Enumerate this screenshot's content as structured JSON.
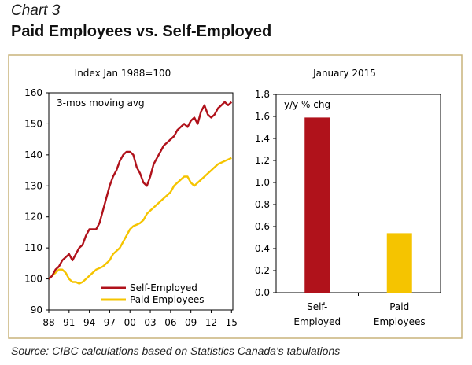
{
  "header": {
    "chart_number": "Chart 3",
    "title": "Paid Employees vs. Self-Employed"
  },
  "footer": {
    "source": "Source: CIBC calculations based on Statistics Canada's tabulations"
  },
  "colors": {
    "self_employed": "#b0121b",
    "paid_employees": "#f5c400",
    "frame_border": "#c9b37a"
  },
  "chart_data": [
    {
      "type": "line",
      "title": "Index Jan 1988=100",
      "annotation": "3-mos moving avg",
      "ylim": [
        90,
        160
      ],
      "xlim": [
        1988,
        2015.2
      ],
      "y_ticks": [
        90,
        100,
        110,
        120,
        130,
        140,
        150,
        160
      ],
      "x_ticks": [
        {
          "value": 1988,
          "label": "88"
        },
        {
          "value": 1991,
          "label": "91"
        },
        {
          "value": 1994,
          "label": "94"
        },
        {
          "value": 1997,
          "label": "97"
        },
        {
          "value": 2000,
          "label": "00"
        },
        {
          "value": 2003,
          "label": "03"
        },
        {
          "value": 2006,
          "label": "06"
        },
        {
          "value": 2009,
          "label": "09"
        },
        {
          "value": 2012,
          "label": "12"
        },
        {
          "value": 2015,
          "label": "15"
        }
      ],
      "legend_position": "bottom-left",
      "series": [
        {
          "name": "Self-Employed",
          "color": "#b0121b",
          "points": [
            [
              1988.0,
              100
            ],
            [
              1988.5,
              101
            ],
            [
              1989.0,
              103
            ],
            [
              1989.5,
              104
            ],
            [
              1990.0,
              106
            ],
            [
              1990.5,
              107
            ],
            [
              1991.0,
              108
            ],
            [
              1991.5,
              106
            ],
            [
              1992.0,
              108
            ],
            [
              1992.5,
              110
            ],
            [
              1993.0,
              111
            ],
            [
              1993.5,
              114
            ],
            [
              1994.0,
              116
            ],
            [
              1994.5,
              116
            ],
            [
              1995.0,
              116
            ],
            [
              1995.5,
              118
            ],
            [
              1996.0,
              122
            ],
            [
              1996.5,
              126
            ],
            [
              1997.0,
              130
            ],
            [
              1997.5,
              133
            ],
            [
              1998.0,
              135
            ],
            [
              1998.5,
              138
            ],
            [
              1999.0,
              140
            ],
            [
              1999.5,
              141
            ],
            [
              2000.0,
              141
            ],
            [
              2000.5,
              140
            ],
            [
              2001.0,
              136
            ],
            [
              2001.5,
              134
            ],
            [
              2002.0,
              131
            ],
            [
              2002.5,
              130
            ],
            [
              2003.0,
              133
            ],
            [
              2003.5,
              137
            ],
            [
              2004.0,
              139
            ],
            [
              2004.5,
              141
            ],
            [
              2005.0,
              143
            ],
            [
              2005.5,
              144
            ],
            [
              2006.0,
              145
            ],
            [
              2006.5,
              146
            ],
            [
              2007.0,
              148
            ],
            [
              2007.5,
              149
            ],
            [
              2008.0,
              150
            ],
            [
              2008.5,
              149
            ],
            [
              2009.0,
              151
            ],
            [
              2009.5,
              152
            ],
            [
              2010.0,
              150
            ],
            [
              2010.5,
              154
            ],
            [
              2011.0,
              156
            ],
            [
              2011.5,
              153
            ],
            [
              2012.0,
              152
            ],
            [
              2012.5,
              153
            ],
            [
              2013.0,
              155
            ],
            [
              2013.5,
              156
            ],
            [
              2014.0,
              157
            ],
            [
              2014.5,
              156
            ],
            [
              2015.0,
              157
            ]
          ]
        },
        {
          "name": "Paid Employees",
          "color": "#f5c400",
          "points": [
            [
              1988.0,
              100
            ],
            [
              1988.5,
              101
            ],
            [
              1989.0,
              102
            ],
            [
              1989.5,
              103
            ],
            [
              1990.0,
              103
            ],
            [
              1990.5,
              102
            ],
            [
              1991.0,
              100
            ],
            [
              1991.5,
              99
            ],
            [
              1992.0,
              99
            ],
            [
              1992.5,
              98.5
            ],
            [
              1993.0,
              99
            ],
            [
              1993.5,
              100
            ],
            [
              1994.0,
              101
            ],
            [
              1994.5,
              102
            ],
            [
              1995.0,
              103
            ],
            [
              1995.5,
              103.5
            ],
            [
              1996.0,
              104
            ],
            [
              1996.5,
              105
            ],
            [
              1997.0,
              106
            ],
            [
              1997.5,
              108
            ],
            [
              1998.0,
              109
            ],
            [
              1998.5,
              110
            ],
            [
              1999.0,
              112
            ],
            [
              1999.5,
              114
            ],
            [
              2000.0,
              116
            ],
            [
              2000.5,
              117
            ],
            [
              2001.0,
              117.5
            ],
            [
              2001.5,
              118
            ],
            [
              2002.0,
              119
            ],
            [
              2002.5,
              121
            ],
            [
              2003.0,
              122
            ],
            [
              2003.5,
              123
            ],
            [
              2004.0,
              124
            ],
            [
              2004.5,
              125
            ],
            [
              2005.0,
              126
            ],
            [
              2005.5,
              127
            ],
            [
              2006.0,
              128
            ],
            [
              2006.5,
              130
            ],
            [
              2007.0,
              131
            ],
            [
              2007.5,
              132
            ],
            [
              2008.0,
              133
            ],
            [
              2008.5,
              133
            ],
            [
              2009.0,
              131
            ],
            [
              2009.5,
              130
            ],
            [
              2010.0,
              131
            ],
            [
              2010.5,
              132
            ],
            [
              2011.0,
              133
            ],
            [
              2011.5,
              134
            ],
            [
              2012.0,
              135
            ],
            [
              2012.5,
              136
            ],
            [
              2013.0,
              137
            ],
            [
              2013.5,
              137.5
            ],
            [
              2014.0,
              138
            ],
            [
              2014.5,
              138.5
            ],
            [
              2015.0,
              139
            ]
          ]
        }
      ]
    },
    {
      "type": "bar",
      "title": "January 2015",
      "ylabel": "y/y % chg",
      "ylim": [
        0,
        1.8
      ],
      "y_ticks": [
        "0.0",
        "0.2",
        "0.4",
        "0.6",
        "0.8",
        "1.0",
        "1.2",
        "1.4",
        "1.6",
        "1.8"
      ],
      "categories": [
        {
          "line1": "Self-",
          "line2": "Employed"
        },
        {
          "line1": "Paid",
          "line2": "Employees"
        }
      ],
      "values": [
        1.59,
        0.54
      ],
      "bar_colors": [
        "#b0121b",
        "#f5c400"
      ]
    }
  ]
}
